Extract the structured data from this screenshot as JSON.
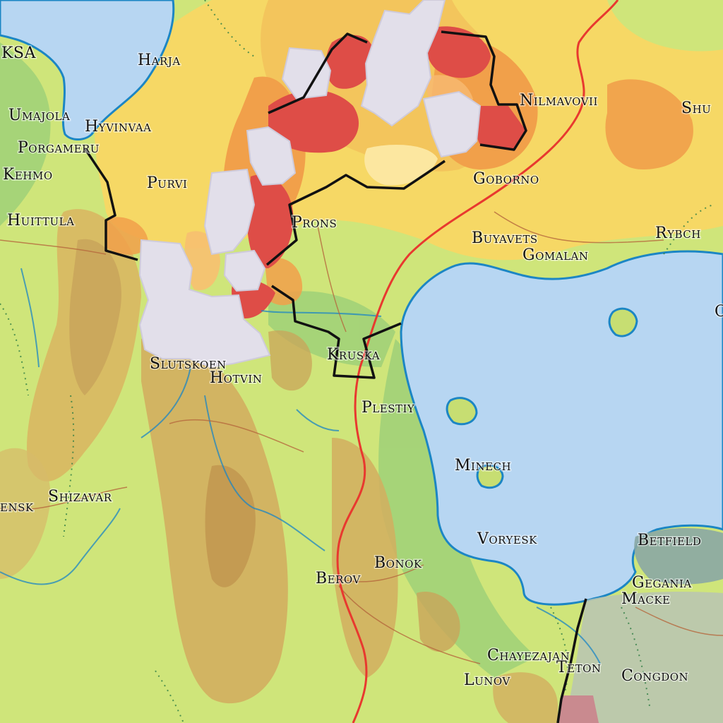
{
  "map": {
    "places": [
      {
        "id": "ksa",
        "name": "KSA"
      },
      {
        "id": "harja",
        "name": "Harja"
      },
      {
        "id": "umajola",
        "name": "Umajola"
      },
      {
        "id": "hyvinvaa",
        "name": "Hyvinvaa"
      },
      {
        "id": "porgameru",
        "name": "Porgameru"
      },
      {
        "id": "kehmo",
        "name": "Kehmo"
      },
      {
        "id": "purvi",
        "name": "Purvi"
      },
      {
        "id": "huittula",
        "name": "Huittula"
      },
      {
        "id": "prons",
        "name": "Prons"
      },
      {
        "id": "nilmavovii",
        "name": "Nilmavovii"
      },
      {
        "id": "shu",
        "name": "Shu"
      },
      {
        "id": "goborno",
        "name": "Goborno"
      },
      {
        "id": "buyavets",
        "name": "Buyavets"
      },
      {
        "id": "gomalan",
        "name": "Gomalan"
      },
      {
        "id": "rybch",
        "name": "Rybch"
      },
      {
        "id": "edge-c",
        "name": "C"
      },
      {
        "id": "kruska",
        "name": "Kruska"
      },
      {
        "id": "slutskoen",
        "name": "Slutskoen"
      },
      {
        "id": "hotvin",
        "name": "Hotvin"
      },
      {
        "id": "plestiy",
        "name": "Plestiy"
      },
      {
        "id": "minech",
        "name": "Minech"
      },
      {
        "id": "ensk",
        "name": "ensk"
      },
      {
        "id": "shizavar",
        "name": "Shizavar"
      },
      {
        "id": "voryesk",
        "name": "Voryesk"
      },
      {
        "id": "betfield",
        "name": "Betfield"
      },
      {
        "id": "bonok",
        "name": "Bonok"
      },
      {
        "id": "berov",
        "name": "Berov"
      },
      {
        "id": "gegania",
        "name": "Gegania"
      },
      {
        "id": "macke",
        "name": "Macke"
      },
      {
        "id": "chayezajan",
        "name": "Chayezajan"
      },
      {
        "id": "teton",
        "name": "Teton"
      },
      {
        "id": "lunov",
        "name": "Lunov"
      },
      {
        "id": "congdon",
        "name": "Congdon"
      }
    ],
    "colors": {
      "water": "#b7d6f2",
      "shoreline": "#1c86c4",
      "lowland": "#cfe57a",
      "upland": "#c9a45a",
      "highland": "#b98e4a",
      "heat_yellow": "#f6d865",
      "heat_orange": "#f1a04a",
      "heat_red": "#de4d47",
      "snow": "#e2dfea",
      "road": "#e8392f",
      "border": "#111111",
      "region_ne": "#8aa7a4"
    }
  }
}
